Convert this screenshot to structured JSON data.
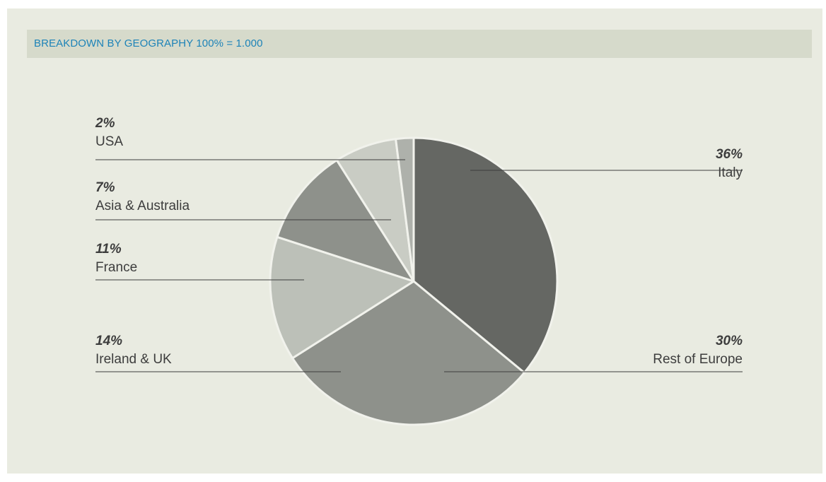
{
  "header": {
    "title": "BREAKDOWN BY GEOGRAPHY",
    "total": "100% = 1.000"
  },
  "colors": {
    "header_text": "#1d83b8",
    "panel_bg": "#e9ebe1",
    "header_bg": "#d6dacb"
  },
  "chart_data": {
    "type": "pie",
    "title": "BREAKDOWN BY GEOGRAPHY 100% = 1.000",
    "slices": [
      {
        "label": "Italy",
        "value": 36,
        "value_label": "36%",
        "color": "#656763"
      },
      {
        "label": "Rest of Europe",
        "value": 30,
        "value_label": "30%",
        "color": "#8e918b"
      },
      {
        "label": "Ireland & UK",
        "value": 14,
        "value_label": "14%",
        "color": "#bcc0b8"
      },
      {
        "label": "France",
        "value": 11,
        "value_label": "11%",
        "color": "#8e918b"
      },
      {
        "label": "Asia & Australia",
        "value": 7,
        "value_label": "7%",
        "color": "#c9ccc4"
      },
      {
        "label": "USA",
        "value": 2,
        "value_label": "2%",
        "color": "#aeb1ab"
      }
    ],
    "start_angle": "12 o'clock",
    "direction": "clockwise",
    "legend": "callout labels"
  }
}
